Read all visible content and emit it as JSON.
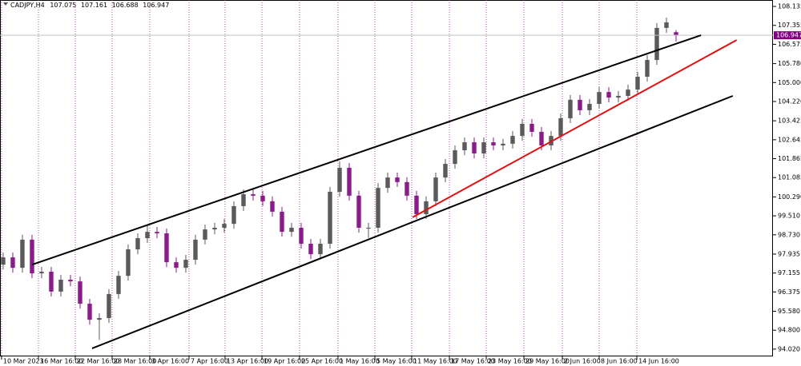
{
  "chart_data": {
    "type": "candlestick",
    "symbol": "CADJPY,H4",
    "up_color": "#5a5a5a",
    "down_color": "#8b1a8b",
    "candles": [
      [
        97.5,
        98.0,
        97.3,
        97.8
      ],
      [
        97.8,
        98.0,
        97.17,
        97.37
      ],
      [
        97.37,
        98.73,
        97.17,
        98.53
      ],
      [
        98.53,
        98.73,
        96.94,
        97.14
      ],
      [
        97.14,
        97.41,
        96.94,
        97.21
      ],
      [
        97.21,
        97.41,
        96.19,
        96.39
      ],
      [
        96.39,
        97.08,
        96.19,
        96.88
      ],
      [
        96.88,
        97.08,
        96.61,
        96.81
      ],
      [
        96.81,
        97.01,
        95.69,
        95.89
      ],
      [
        95.89,
        96.09,
        95.03,
        95.23
      ],
      [
        95.23,
        95.5,
        94.4,
        95.3
      ],
      [
        95.3,
        96.49,
        95.1,
        96.29
      ],
      [
        96.29,
        97.24,
        96.09,
        97.04
      ],
      [
        97.04,
        98.33,
        96.84,
        98.13
      ],
      [
        98.13,
        98.79,
        97.93,
        98.59
      ],
      [
        98.59,
        99.15,
        98.39,
        98.85
      ],
      [
        98.85,
        99.05,
        98.59,
        98.79
      ],
      [
        98.79,
        98.99,
        97.4,
        97.6
      ],
      [
        97.6,
        97.8,
        97.17,
        97.37
      ],
      [
        97.37,
        97.9,
        97.17,
        97.7
      ],
      [
        97.7,
        98.73,
        97.5,
        98.53
      ],
      [
        98.53,
        99.15,
        98.33,
        98.95
      ],
      [
        98.95,
        99.22,
        98.75,
        99.02
      ],
      [
        99.02,
        99.38,
        98.82,
        99.18
      ],
      [
        99.18,
        100.11,
        98.98,
        99.91
      ],
      [
        99.91,
        100.6,
        99.71,
        100.4
      ],
      [
        100.4,
        100.6,
        100.14,
        100.34
      ],
      [
        100.34,
        100.54,
        99.91,
        100.11
      ],
      [
        100.11,
        100.31,
        99.48,
        99.68
      ],
      [
        99.68,
        99.88,
        98.65,
        98.85
      ],
      [
        98.85,
        99.22,
        98.65,
        99.02
      ],
      [
        99.02,
        99.22,
        98.16,
        98.36
      ],
      [
        98.36,
        98.56,
        97.73,
        97.93
      ],
      [
        97.93,
        98.56,
        97.73,
        98.36
      ],
      [
        98.36,
        100.7,
        98.16,
        100.5
      ],
      [
        100.5,
        101.75,
        100.3,
        101.49
      ],
      [
        101.49,
        101.69,
        100.14,
        100.34
      ],
      [
        100.34,
        100.54,
        98.82,
        99.02
      ],
      [
        99.02,
        99.22,
        98.6,
        99.02
      ],
      [
        99.02,
        100.86,
        98.82,
        100.66
      ],
      [
        100.66,
        101.29,
        100.46,
        101.09
      ],
      [
        101.09,
        101.29,
        100.7,
        100.9
      ],
      [
        100.9,
        101.1,
        100.14,
        100.34
      ],
      [
        100.34,
        100.54,
        99.38,
        99.58
      ],
      [
        99.58,
        100.31,
        99.38,
        100.11
      ],
      [
        100.11,
        101.29,
        99.91,
        101.09
      ],
      [
        101.09,
        101.85,
        100.89,
        101.65
      ],
      [
        101.65,
        102.41,
        101.45,
        102.21
      ],
      [
        102.21,
        102.74,
        102.01,
        102.54
      ],
      [
        102.54,
        102.74,
        101.88,
        102.08
      ],
      [
        102.08,
        102.74,
        101.88,
        102.54
      ],
      [
        102.54,
        102.74,
        102.21,
        102.41
      ],
      [
        102.41,
        102.68,
        102.21,
        102.48
      ],
      [
        102.48,
        103.0,
        102.28,
        102.8
      ],
      [
        102.8,
        103.5,
        102.6,
        103.3
      ],
      [
        103.3,
        103.5,
        102.77,
        102.97
      ],
      [
        102.97,
        103.17,
        102.21,
        102.41
      ],
      [
        102.41,
        103.0,
        102.21,
        102.8
      ],
      [
        102.8,
        103.73,
        102.6,
        103.53
      ],
      [
        103.53,
        104.49,
        103.33,
        104.29
      ],
      [
        104.29,
        104.49,
        103.66,
        103.86
      ],
      [
        103.86,
        104.32,
        103.66,
        104.12
      ],
      [
        104.12,
        104.81,
        103.92,
        104.61
      ],
      [
        104.61,
        104.81,
        104.18,
        104.38
      ],
      [
        104.38,
        104.65,
        104.18,
        104.45
      ],
      [
        104.45,
        104.91,
        104.25,
        104.71
      ],
      [
        104.71,
        105.44,
        104.51,
        105.24
      ],
      [
        105.24,
        106.13,
        105.04,
        105.93
      ],
      [
        105.93,
        107.45,
        105.73,
        107.25
      ],
      [
        107.25,
        107.68,
        107.05,
        107.48
      ],
      [
        107.075,
        107.161,
        106.688,
        106.947
      ]
    ],
    "trendlines": [
      {
        "color": "#000000",
        "x": [
          3.0,
          72.6
        ],
        "y": [
          97.5,
          106.95
        ]
      },
      {
        "color": "#000000",
        "x": [
          9.25,
          75.9
        ],
        "y": [
          94.05,
          104.45
        ]
      },
      {
        "color": "#e01010",
        "x": [
          42.6,
          76.3
        ],
        "y": [
          99.45,
          106.75
        ]
      }
    ],
    "xlim": [
      -0.33,
      80.08
    ],
    "ylim": [
      93.72,
      108.4
    ],
    "xticks": [
      {
        "value": -0.17,
        "label": "10 Mar 2023"
      },
      {
        "value": 3.67,
        "label": "16 Mar 16:00"
      },
      {
        "value": 7.5,
        "label": "22 Mar 16:00"
      },
      {
        "value": 11.33,
        "label": "28 Mar 16:00"
      },
      {
        "value": 15.25,
        "label": "3 Apr 16:00"
      },
      {
        "value": 19.33,
        "label": "7 Apr 16:00"
      },
      {
        "value": 23.08,
        "label": "13 Apr 16:00"
      },
      {
        "value": 26.92,
        "label": "19 Apr 16:00"
      },
      {
        "value": 30.83,
        "label": "25 Apr 16:00"
      },
      {
        "value": 34.83,
        "label": "1 May 16:00"
      },
      {
        "value": 38.67,
        "label": "5 May 16:00"
      },
      {
        "value": 42.5,
        "label": "11 May 16:00"
      },
      {
        "value": 46.42,
        "label": "17 May 16:00"
      },
      {
        "value": 50.25,
        "label": "23 May 16:00"
      },
      {
        "value": 54.17,
        "label": "29 May 16:00"
      },
      {
        "value": 58.17,
        "label": "2 Jun 16:00"
      },
      {
        "value": 62,
        "label": "8 Jun 16:00"
      },
      {
        "value": 65.92,
        "label": "14 Jun 16:00"
      }
    ],
    "yticks": [
      108.135,
      107.355,
      106.575,
      {
        "value": 105.78,
        "label": "105.780"
      },
      {
        "value": 105,
        "label": "105.000"
      },
      {
        "value": 104.22,
        "label": "104.220"
      },
      103.425,
      102.645,
      101.865,
      101.085,
      {
        "value": 100.29,
        "label": "100.290"
      },
      {
        "value": 99.51,
        "label": "99.510"
      },
      {
        "value": 98.73,
        "label": "98.730"
      },
      97.935,
      97.155,
      96.375,
      {
        "value": 95.58,
        "label": "95.580"
      },
      {
        "value": 94.8,
        "label": "94.800"
      },
      {
        "value": 94.02,
        "label": "94.020"
      }
    ],
    "price_line_color": "#c0c0c0",
    "price_tag_color": "#800080"
  }
}
